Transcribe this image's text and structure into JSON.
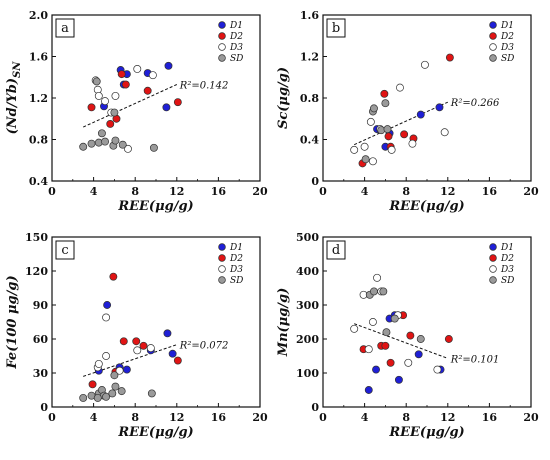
{
  "legend_labels": [
    "D1",
    "D2",
    "D3",
    "SD"
  ],
  "colors": {
    "D1": "#1f1fd6",
    "D2": "#e01414",
    "D3": "#ffffff",
    "SD": "#9a9a9a"
  },
  "chart_data": [
    {
      "type": "scatter",
      "panel": "a",
      "xlabel": "REE(μg/g)",
      "ylabel_main": "(Nd/Yb)",
      "ylabel_sub": "SN",
      "xlim": [
        0,
        20
      ],
      "ylim": [
        0.4,
        2.0
      ],
      "xticks": [
        0,
        4,
        8,
        12,
        16,
        20
      ],
      "yticks": [
        "0.4",
        "0.8",
        "1.2",
        "1.6",
        "2.0"
      ],
      "ytick_values": [
        0.4,
        0.8,
        1.2,
        1.6,
        2.0
      ],
      "r2_text": "R²=0.142",
      "trend": [
        [
          3,
          0.92
        ],
        [
          12,
          1.33
        ]
      ],
      "series": [
        {
          "name": "D1",
          "points": [
            [
              5,
              1.12
            ],
            [
              6.6,
              1.47
            ],
            [
              7.2,
              1.43
            ],
            [
              9.2,
              1.44
            ],
            [
              11.2,
              1.51
            ],
            [
              11,
              1.11
            ],
            [
              6.9,
              1.33
            ]
          ]
        },
        {
          "name": "D2",
          "points": [
            [
              3.8,
              1.11
            ],
            [
              5.6,
              0.95
            ],
            [
              6.2,
              1.0
            ],
            [
              6.7,
              1.43
            ],
            [
              7.1,
              1.33
            ],
            [
              9.2,
              1.27
            ],
            [
              12.1,
              1.16
            ]
          ]
        },
        {
          "name": "D3",
          "points": [
            [
              4.2,
              1.37
            ],
            [
              4.4,
              1.28
            ],
            [
              4.5,
              1.22
            ],
            [
              5.1,
              1.17
            ],
            [
              6.1,
              1.22
            ],
            [
              8.2,
              1.48
            ],
            [
              9.7,
              1.42
            ],
            [
              5.7,
              1.06
            ],
            [
              7.3,
              0.71
            ]
          ]
        },
        {
          "name": "SD",
          "points": [
            [
              3,
              0.73
            ],
            [
              3.8,
              0.76
            ],
            [
              4.5,
              0.77
            ],
            [
              4.8,
              0.86
            ],
            [
              5.1,
              0.78
            ],
            [
              5.9,
              0.74
            ],
            [
              6.1,
              0.79
            ],
            [
              6.8,
              0.75
            ],
            [
              9.8,
              0.72
            ],
            [
              4.3,
              1.36
            ],
            [
              6,
              1.06
            ]
          ]
        }
      ]
    },
    {
      "type": "scatter",
      "panel": "b",
      "xlabel": "REE(μg/g)",
      "ylabel_main": "Sc(μg/g)",
      "ylabel_sub": "",
      "xlim": [
        0,
        20
      ],
      "ylim": [
        0,
        1.6
      ],
      "xticks": [
        0,
        4,
        8,
        12,
        16,
        20
      ],
      "yticks": [
        "0",
        "0.4",
        "0.8",
        "1.2",
        "1.6"
      ],
      "ytick_values": [
        0,
        0.4,
        0.8,
        1.2,
        1.6
      ],
      "r2_text": "R²=0.266",
      "trend": [
        [
          3,
          0.35
        ],
        [
          12,
          0.76
        ]
      ],
      "series": [
        {
          "name": "D1",
          "points": [
            [
              5.2,
              0.5
            ],
            [
              6,
              0.33
            ],
            [
              6.4,
              0.46
            ],
            [
              9.4,
              0.64
            ],
            [
              11.2,
              0.71
            ]
          ]
        },
        {
          "name": "D2",
          "points": [
            [
              3.8,
              0.17
            ],
            [
              5.9,
              0.84
            ],
            [
              6.3,
              0.43
            ],
            [
              6.5,
              0.33
            ],
            [
              7.8,
              0.45
            ],
            [
              8.7,
              0.41
            ],
            [
              12.2,
              1.19
            ]
          ]
        },
        {
          "name": "D3",
          "points": [
            [
              3,
              0.3
            ],
            [
              4,
              0.33
            ],
            [
              4.6,
              0.57
            ],
            [
              5.5,
              0.5
            ],
            [
              6.6,
              0.3
            ],
            [
              7.4,
              0.9
            ],
            [
              8.6,
              0.36
            ],
            [
              9.8,
              1.12
            ],
            [
              11.7,
              0.47
            ],
            [
              4.8,
              0.19
            ]
          ]
        },
        {
          "name": "SD",
          "points": [
            [
              4.1,
              0.21
            ],
            [
              4.8,
              0.67
            ],
            [
              4.9,
              0.7
            ],
            [
              5.6,
              0.49
            ],
            [
              6,
              0.75
            ],
            [
              6.2,
              0.5
            ]
          ]
        }
      ]
    },
    {
      "type": "scatter",
      "panel": "c",
      "xlabel": "REE(μg/g)",
      "ylabel_main": "Fe(100 μg/g)",
      "ylabel_sub": "",
      "xlim": [
        0,
        20
      ],
      "ylim": [
        0,
        150
      ],
      "xticks": [
        0,
        4,
        8,
        12,
        16,
        20
      ],
      "yticks": [
        "0",
        "30",
        "60",
        "90",
        "120",
        "150"
      ],
      "ytick_values": [
        0,
        30,
        60,
        90,
        120,
        150
      ],
      "r2_text": "R²=0.072",
      "trend": [
        [
          3,
          27
        ],
        [
          12,
          55
        ]
      ],
      "series": [
        {
          "name": "D1",
          "points": [
            [
              4.5,
              32
            ],
            [
              5.3,
              90
            ],
            [
              6.5,
              35
            ],
            [
              7.2,
              33
            ],
            [
              9.5,
              50
            ],
            [
              11.1,
              65
            ],
            [
              11.6,
              47
            ]
          ]
        },
        {
          "name": "D2",
          "points": [
            [
              3.9,
              20
            ],
            [
              5.9,
              115
            ],
            [
              6.1,
              31
            ],
            [
              6.9,
              58
            ],
            [
              8.1,
              58
            ],
            [
              8.8,
              54
            ],
            [
              12.1,
              41
            ]
          ]
        },
        {
          "name": "D3",
          "points": [
            [
              4.4,
              35
            ],
            [
              4.5,
              38
            ],
            [
              5.2,
              79
            ],
            [
              5.2,
              45
            ],
            [
              6.5,
              32
            ],
            [
              8.2,
              50
            ],
            [
              9.5,
              52
            ]
          ]
        },
        {
          "name": "SD",
          "points": [
            [
              3,
              8
            ],
            [
              3.8,
              10
            ],
            [
              4.5,
              12
            ],
            [
              4.8,
              15
            ],
            [
              5,
              10
            ],
            [
              5.2,
              9
            ],
            [
              5.8,
              12
            ],
            [
              6.1,
              18
            ],
            [
              6.7,
              14
            ],
            [
              9.6,
              12
            ],
            [
              4.4,
              8
            ],
            [
              6,
              28
            ]
          ]
        }
      ]
    },
    {
      "type": "scatter",
      "panel": "d",
      "xlabel": "REE(μg/g)",
      "ylabel_main": "Mn(μg/g)",
      "ylabel_sub": "",
      "xlim": [
        0,
        20
      ],
      "ylim": [
        0,
        500
      ],
      "xticks": [
        0,
        4,
        8,
        12,
        16,
        20
      ],
      "yticks": [
        "0",
        "100",
        "200",
        "300",
        "400",
        "500"
      ],
      "ytick_values": [
        0,
        100,
        200,
        300,
        400,
        500
      ],
      "r2_text": "R²=0.101",
      "trend": [
        [
          3,
          245
        ],
        [
          12,
          143
        ]
      ],
      "series": [
        {
          "name": "D1",
          "points": [
            [
              4.4,
              50
            ],
            [
              5.1,
              110
            ],
            [
              6.4,
              260
            ],
            [
              6.9,
              270
            ],
            [
              7.3,
              80
            ],
            [
              9.2,
              155
            ],
            [
              11.3,
              110
            ]
          ]
        },
        {
          "name": "D2",
          "points": [
            [
              3.9,
              170
            ],
            [
              5.6,
              180
            ],
            [
              6,
              180
            ],
            [
              6.5,
              130
            ],
            [
              7.7,
              270
            ],
            [
              8.4,
              210
            ],
            [
              12.1,
              200
            ]
          ]
        },
        {
          "name": "D3",
          "points": [
            [
              3,
              230
            ],
            [
              3.9,
              330
            ],
            [
              4.4,
              170
            ],
            [
              4.8,
              250
            ],
            [
              5.2,
              380
            ],
            [
              5.6,
              340
            ],
            [
              7.2,
              270
            ],
            [
              8.2,
              130
            ],
            [
              11,
              110
            ]
          ]
        },
        {
          "name": "SD",
          "points": [
            [
              4.5,
              330
            ],
            [
              4.9,
              340
            ],
            [
              5.8,
              340
            ],
            [
              6.1,
              220
            ],
            [
              6.9,
              260
            ],
            [
              9.4,
              200
            ]
          ]
        }
      ]
    }
  ]
}
